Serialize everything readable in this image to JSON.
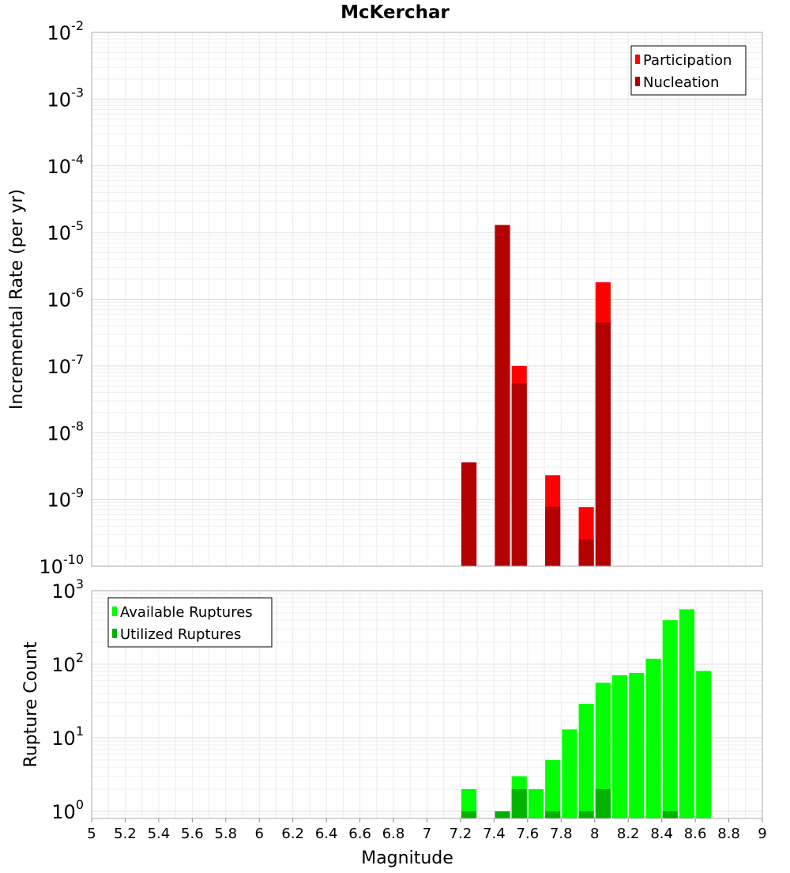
{
  "chart_data": [
    {
      "type": "bar",
      "title": "McKerchar",
      "ylabel": "Incremental Rate (per yr)",
      "xlabel": "",
      "xlim": [
        5,
        9
      ],
      "ylim": [
        1e-10,
        0.01
      ],
      "yscale": "log",
      "grid": true,
      "legend_position": "top-right",
      "y_ticks": [
        {
          "base": "10",
          "exp": "-10",
          "value": 1e-10
        },
        {
          "base": "10",
          "exp": "-9",
          "value": 1e-09
        },
        {
          "base": "10",
          "exp": "-8",
          "value": 1e-08
        },
        {
          "base": "10",
          "exp": "-7",
          "value": 1e-07
        },
        {
          "base": "10",
          "exp": "-6",
          "value": 1e-06
        },
        {
          "base": "10",
          "exp": "-5",
          "value": 1e-05
        },
        {
          "base": "10",
          "exp": "-4",
          "value": 0.0001
        },
        {
          "base": "10",
          "exp": "-3",
          "value": 0.001
        },
        {
          "base": "10",
          "exp": "-2",
          "value": 0.01
        }
      ],
      "series": [
        {
          "name": "Participation",
          "color": "#ff0000",
          "x": [
            7.25,
            7.45,
            7.55,
            7.75,
            7.95,
            8.05
          ],
          "values": [
            3.6e-09,
            1.3e-05,
            1e-07,
            2.3e-09,
            7.7e-10,
            1.8e-06
          ]
        },
        {
          "name": "Nucleation",
          "color": "#b30000",
          "x": [
            7.25,
            7.45,
            7.55,
            7.75,
            7.95,
            8.05
          ],
          "values": [
            3.6e-09,
            1.3e-05,
            5.5e-08,
            7.8e-10,
            2.5e-10,
            4.5e-07
          ]
        }
      ]
    },
    {
      "type": "bar",
      "title": "",
      "ylabel": "Rupture Count",
      "xlabel": "Magnitude",
      "xlim": [
        5,
        9
      ],
      "ylim": [
        0.8,
        1000
      ],
      "yscale": "log",
      "grid": true,
      "legend_position": "top-left",
      "x_ticks": [
        "5",
        "5.2",
        "5.4",
        "5.6",
        "5.8",
        "6",
        "6.2",
        "6.4",
        "6.6",
        "6.8",
        "7",
        "7.2",
        "7.4",
        "7.6",
        "7.8",
        "8",
        "8.2",
        "8.4",
        "8.6",
        "8.8",
        "9"
      ],
      "y_ticks": [
        {
          "base": "10",
          "exp": "0",
          "value": 1
        },
        {
          "base": "10",
          "exp": "1",
          "value": 10
        },
        {
          "base": "10",
          "exp": "2",
          "value": 100
        },
        {
          "base": "10",
          "exp": "3",
          "value": 1000
        }
      ],
      "series": [
        {
          "name": "Available Ruptures",
          "color": "#00ff00",
          "x": [
            7.25,
            7.55,
            7.65,
            7.75,
            7.85,
            7.95,
            8.05,
            8.15,
            8.25,
            8.35,
            8.45,
            8.55,
            8.65
          ],
          "values": [
            2,
            3,
            2,
            5,
            13,
            29,
            56,
            71,
            76,
            119,
            398,
            559,
            81
          ]
        },
        {
          "name": "Utilized Ruptures",
          "color": "#00b300",
          "x": [
            7.25,
            7.45,
            7.55,
            7.75,
            7.95,
            8.05,
            8.45
          ],
          "values": [
            1,
            1,
            2,
            1,
            1,
            2,
            1
          ]
        }
      ]
    }
  ]
}
